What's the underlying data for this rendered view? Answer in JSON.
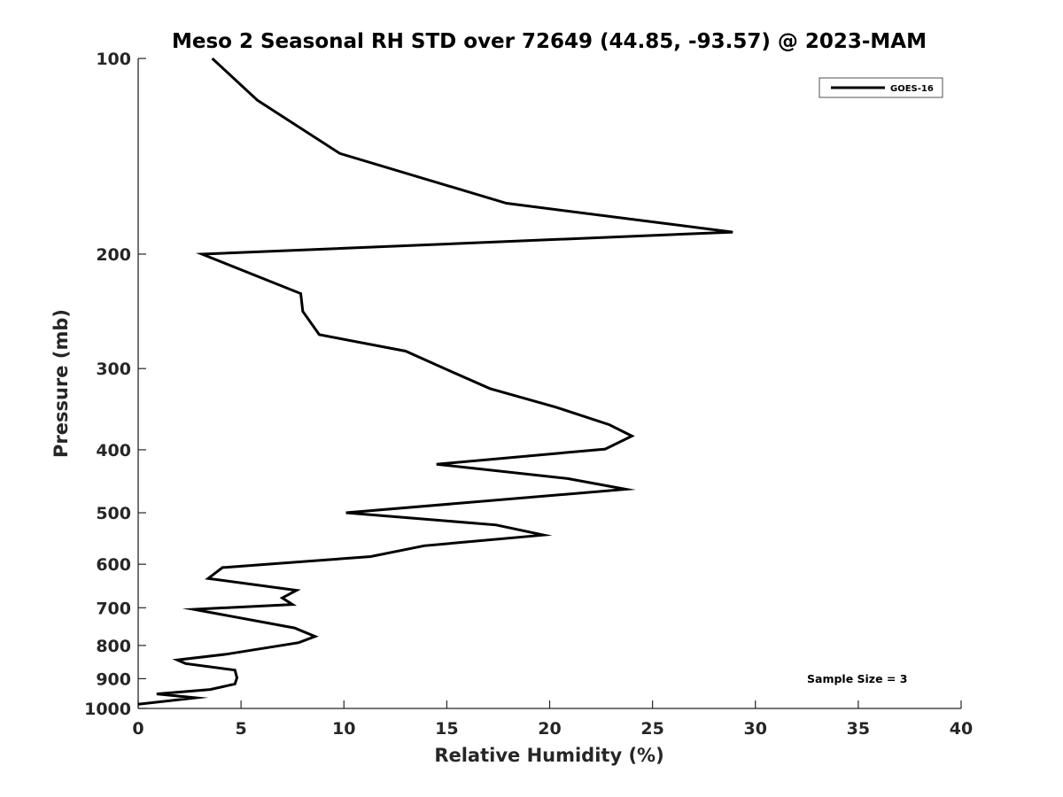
{
  "chart_data": {
    "type": "line",
    "title": "Meso 2 Seasonal RH STD over 72649 (44.85, -93.57) @ 2023-MAM",
    "xlabel": "Relative Humidity (%)",
    "ylabel": "Pressure (mb)",
    "xlim": [
      0,
      40
    ],
    "ylim": [
      100,
      1000
    ],
    "y_scale": "log",
    "y_reversed": true,
    "grid": false,
    "legend_position": "top-right",
    "x_ticks": [
      "0",
      "5",
      "10",
      "15",
      "20",
      "25",
      "30",
      "35",
      "40"
    ],
    "y_ticks": [
      "100",
      "200",
      "300",
      "400",
      "500",
      "600",
      "700",
      "800",
      "900",
      "1000"
    ],
    "annotation": "Sample Size = 3",
    "series": [
      {
        "name": "GOES-16",
        "color": "#000000",
        "x": [
          3.6,
          5.8,
          9.8,
          17.9,
          28.9,
          3.1,
          7.9,
          8.0,
          8.8,
          13.0,
          15.2,
          17.1,
          20.3,
          22.9,
          24.0,
          22.7,
          14.5,
          20.9,
          23.7,
          10.1,
          17.4,
          19.7,
          13.9,
          11.3,
          4.1,
          3.4,
          7.7,
          7.0,
          7.5,
          2.7,
          7.6,
          8.6,
          7.8,
          4.3,
          1.9,
          2.3,
          4.7,
          4.8,
          4.7,
          3.5,
          0.9,
          2.8,
          0.0
        ],
        "y": [
          100,
          116,
          140,
          167,
          185,
          200,
          230,
          245,
          266,
          282,
          303,
          322,
          344,
          366,
          381,
          399,
          421,
          443,
          460,
          500,
          522,
          541,
          562,
          584,
          607,
          631,
          658,
          676,
          692,
          704,
          752,
          775,
          792,
          825,
          842,
          853,
          873,
          897,
          917,
          935,
          950,
          963,
          985
        ]
      }
    ]
  }
}
